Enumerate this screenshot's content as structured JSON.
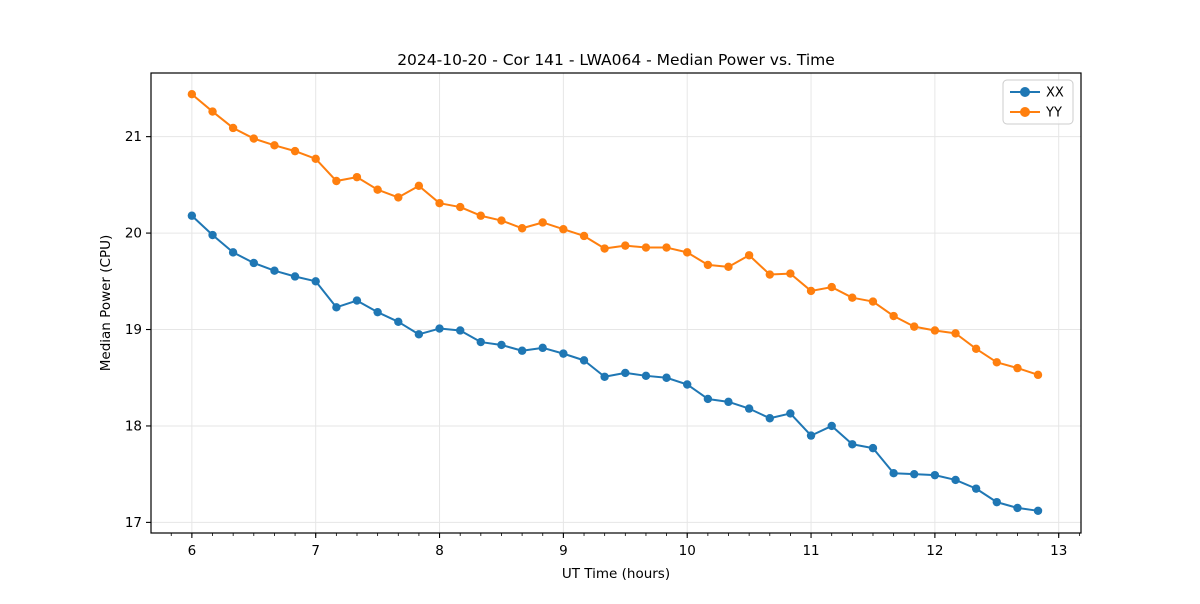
{
  "chart_data": {
    "type": "line",
    "title": "2024-10-20 - Cor 141 - LWA064 - Median Power vs. Time",
    "xlabel": "UT Time (hours)",
    "ylabel": "Median Power (CPU)",
    "xlim": [
      5.67,
      13.18
    ],
    "ylim": [
      16.89,
      21.66
    ],
    "xticks": [
      6,
      7,
      8,
      9,
      10,
      11,
      12,
      13
    ],
    "yticks": [
      17,
      18,
      19,
      20,
      21
    ],
    "x_minor_tick_interval": 0.16667,
    "grid": true,
    "grid_color": "#e6e6e6",
    "spine_color": "#000000",
    "legend_position": "upper right",
    "x": [
      6.0,
      6.167,
      6.333,
      6.5,
      6.667,
      6.833,
      7.0,
      7.167,
      7.333,
      7.5,
      7.667,
      7.833,
      8.0,
      8.167,
      8.333,
      8.5,
      8.667,
      8.833,
      9.0,
      9.167,
      9.333,
      9.5,
      9.667,
      9.833,
      10.0,
      10.167,
      10.333,
      10.5,
      10.667,
      10.833,
      11.0,
      11.167,
      11.333,
      11.5,
      11.667,
      11.833,
      12.0,
      12.167,
      12.333,
      12.5,
      12.667,
      12.833
    ],
    "series": [
      {
        "name": "XX",
        "color": "#1f77b4",
        "values": [
          20.18,
          19.98,
          19.8,
          19.69,
          19.61,
          19.55,
          19.5,
          19.23,
          19.3,
          19.18,
          19.08,
          18.95,
          19.01,
          18.99,
          18.87,
          18.84,
          18.78,
          18.81,
          18.75,
          18.68,
          18.51,
          18.55,
          18.52,
          18.5,
          18.43,
          18.28,
          18.25,
          18.18,
          18.08,
          18.13,
          17.9,
          18.0,
          17.81,
          17.77,
          17.51,
          17.5,
          17.49,
          17.44,
          17.35,
          17.21,
          17.15,
          17.12
        ]
      },
      {
        "name": "YY",
        "color": "#ff7f0e",
        "values": [
          21.44,
          21.26,
          21.09,
          20.98,
          20.91,
          20.85,
          20.77,
          20.54,
          20.58,
          20.45,
          20.37,
          20.49,
          20.31,
          20.27,
          20.18,
          20.13,
          20.05,
          20.11,
          20.04,
          19.97,
          19.84,
          19.87,
          19.85,
          19.85,
          19.8,
          19.67,
          19.65,
          19.77,
          19.57,
          19.58,
          19.4,
          19.44,
          19.33,
          19.29,
          19.14,
          19.03,
          18.99,
          18.96,
          18.8,
          18.66,
          18.6,
          18.53
        ]
      }
    ]
  }
}
